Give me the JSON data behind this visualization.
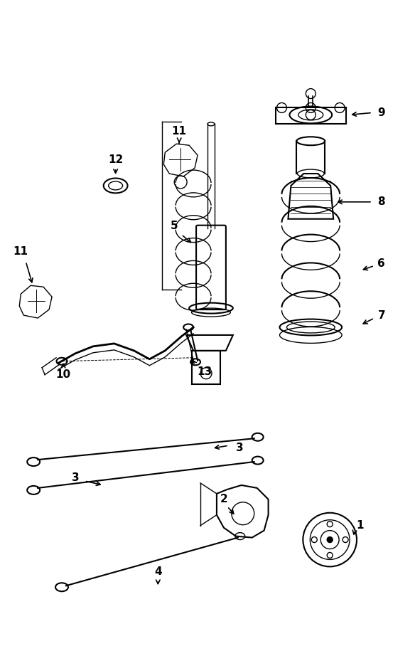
{
  "bg_color": "#ffffff",
  "line_color": "#000000",
  "fig_width": 5.84,
  "fig_height": 9.15,
  "dpi": 100
}
